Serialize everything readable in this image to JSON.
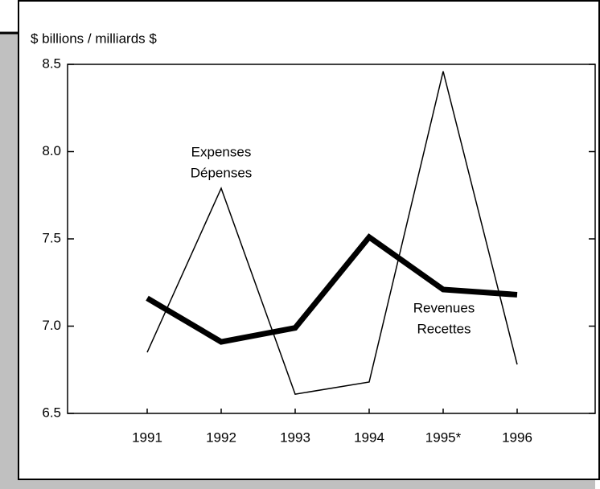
{
  "chart_data": {
    "type": "line",
    "y_label": "$ billions / milliards $",
    "categories": [
      "1991",
      "1992",
      "1993",
      "1994",
      "1995*",
      "1996"
    ],
    "series": [
      {
        "label_lines": [
          "Expenses",
          "Dépenses"
        ],
        "color": "#000000",
        "width": 1.5,
        "values": [
          6.85,
          7.79,
          6.61,
          6.68,
          8.46,
          6.78
        ]
      },
      {
        "label_lines": [
          "Revenues",
          "Recettes"
        ],
        "color": "#000000",
        "width": 7,
        "values": [
          7.16,
          6.91,
          6.99,
          7.51,
          7.21,
          7.18
        ]
      }
    ],
    "ylim": [
      6.5,
      8.5
    ],
    "yticks": [
      6.5,
      {
        "value": 7.0,
        "label": "7.0"
      },
      7.5,
      {
        "value": 8.0,
        "label": "8.0"
      },
      8.5
    ]
  }
}
